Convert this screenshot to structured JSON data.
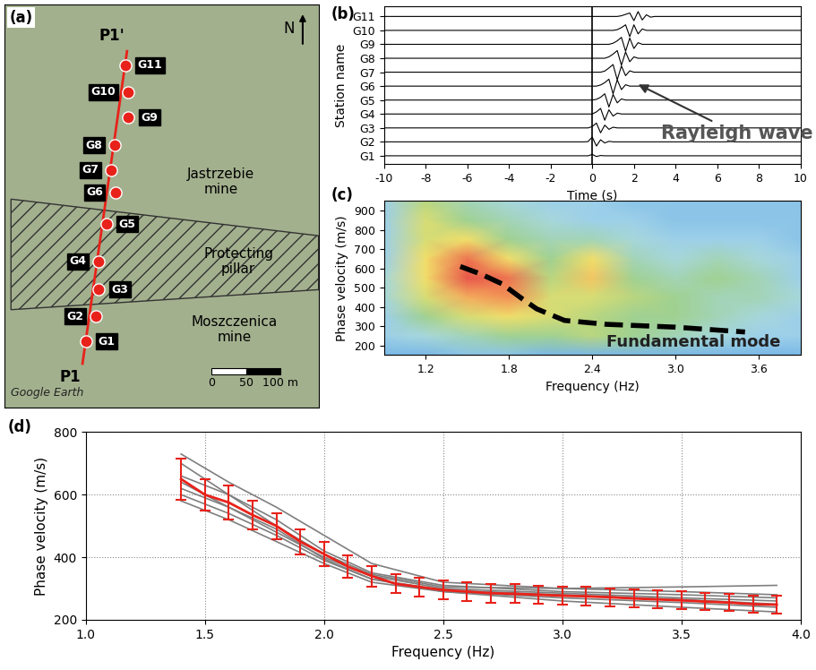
{
  "chart_data": [
    {
      "type": "map",
      "panel_label": "(a)",
      "tick_labels": false,
      "xlim": [
        0,
        455
      ],
      "ylim": [
        0,
        582
      ],
      "stations": [
        {
          "name": "G1",
          "x": 118,
          "y": 95
        },
        {
          "name": "G2",
          "x": 133,
          "y": 131
        },
        {
          "name": "G3",
          "x": 137,
          "y": 170
        },
        {
          "name": "G4",
          "x": 137,
          "y": 211
        },
        {
          "name": "G5",
          "x": 148,
          "y": 265
        },
        {
          "name": "G6",
          "x": 161,
          "y": 311
        },
        {
          "name": "G7",
          "x": 155,
          "y": 343
        },
        {
          "name": "G8",
          "x": 160,
          "y": 379
        },
        {
          "name": "G9",
          "x": 180,
          "y": 419
        },
        {
          "name": "G10",
          "x": 180,
          "y": 456
        },
        {
          "name": "G11",
          "x": 175,
          "y": 495
        }
      ],
      "station_color": "#e8221a",
      "line_color": "#e8221a",
      "profile_start": "P1",
      "profile_end": "P1'",
      "labels": {
        "north": "N",
        "mine_north": "Jastrzebie\nmine",
        "pillar": "Protecting\npillar",
        "mine_south": "Moszczenica\nmine",
        "credit": "Google Earth"
      },
      "scale_bar": [
        {
          "value": 0,
          "label": "0"
        },
        {
          "value": 50,
          "label": "50"
        },
        {
          "value": 100,
          "label": "100 m"
        }
      ]
    },
    {
      "type": "line",
      "panel_label": "(b)",
      "x_label": "Time (s)",
      "y_label": "Station name",
      "xlim": [
        -10,
        10
      ],
      "xticks": [
        -10,
        -8,
        -6,
        -4,
        -2,
        0,
        2,
        4,
        6,
        8,
        10
      ],
      "annotation": "Rayleigh wave",
      "color": "#000000",
      "x": [
        -10,
        -0.4,
        -0.2,
        0,
        0.2,
        0.4,
        0.6,
        0.8,
        1.0,
        1.2,
        1.4,
        1.6,
        1.8,
        2.0,
        2.2,
        2.4,
        2.6,
        2.8,
        3.0,
        3.2,
        3.4,
        3.6,
        10
      ],
      "series": [
        {
          "name": "G1",
          "values": [
            0,
            0,
            0,
            0.1,
            -0.05,
            0.02,
            0,
            0,
            0,
            0,
            0,
            0,
            0,
            0,
            0,
            0,
            0,
            0,
            0,
            0,
            0,
            0,
            0
          ]
        },
        {
          "name": "G2",
          "values": [
            0,
            0,
            0.02,
            0.35,
            -0.3,
            0.15,
            -0.08,
            0.04,
            0,
            0,
            0,
            0,
            0,
            0,
            0,
            0,
            0,
            0,
            0,
            0,
            0,
            0,
            0
          ]
        },
        {
          "name": "G3",
          "values": [
            0,
            0,
            0,
            0.1,
            0.35,
            -0.35,
            0.2,
            -0.1,
            0.05,
            0,
            0,
            0,
            0,
            0,
            0,
            0,
            0,
            0,
            0,
            0,
            0,
            0,
            0
          ]
        },
        {
          "name": "G4",
          "values": [
            0,
            0,
            0,
            0,
            0.15,
            0.4,
            -0.45,
            0.3,
            -0.15,
            0.06,
            0,
            0,
            0,
            0,
            0,
            0,
            0,
            0,
            0,
            0,
            0,
            0,
            0
          ]
        },
        {
          "name": "G5",
          "values": [
            0,
            0,
            0,
            0,
            0.05,
            0.2,
            0.45,
            -0.5,
            0.4,
            -0.2,
            0.08,
            0,
            0,
            0,
            0,
            0,
            0,
            0,
            0,
            0,
            0,
            0,
            0
          ]
        },
        {
          "name": "G6",
          "values": [
            0,
            0,
            0,
            0,
            0,
            0.08,
            0.25,
            0.5,
            -0.55,
            0.45,
            -0.25,
            0.1,
            0,
            0,
            0,
            0,
            0,
            0,
            0,
            0,
            0,
            0,
            0
          ]
        },
        {
          "name": "G7",
          "values": [
            0,
            0,
            0,
            0,
            0,
            0,
            0.08,
            0.3,
            0.55,
            -0.55,
            0.45,
            -0.25,
            0.1,
            0,
            0,
            0,
            0,
            0,
            0,
            0,
            0,
            0,
            0
          ]
        },
        {
          "name": "G8",
          "values": [
            0,
            0,
            0,
            0,
            0,
            0,
            0,
            0.1,
            0.3,
            0.55,
            -0.5,
            0.45,
            -0.25,
            0.1,
            0,
            0,
            0,
            0,
            0,
            0,
            0,
            0,
            0
          ]
        },
        {
          "name": "G9",
          "values": [
            0,
            0,
            0,
            0,
            0,
            0,
            0,
            0,
            0.08,
            0.25,
            0.5,
            -0.5,
            0.45,
            -0.3,
            0.12,
            0,
            0,
            0,
            0,
            0,
            0,
            0,
            0
          ]
        },
        {
          "name": "G10",
          "values": [
            0,
            0,
            0,
            0,
            0,
            0,
            0,
            0,
            0,
            0.05,
            0.2,
            0.4,
            -0.45,
            0.4,
            -0.25,
            0.1,
            0,
            0,
            0,
            0,
            0,
            0,
            0
          ]
        },
        {
          "name": "G11",
          "values": [
            0,
            0,
            0,
            0,
            0,
            0,
            0,
            0,
            0,
            0,
            0.05,
            0.15,
            0.25,
            -0.3,
            0.35,
            -0.25,
            0.12,
            -0.05,
            0,
            0,
            0,
            0,
            0
          ]
        }
      ]
    },
    {
      "type": "heatmap",
      "panel_label": "(c)",
      "x_label": "Frequency (Hz)",
      "y_label": "Phase velocity (m/s)",
      "xlim": [
        0.9,
        3.9
      ],
      "xticks": [
        1.2,
        1.8,
        2.4,
        3.0,
        3.6
      ],
      "ylim": [
        150,
        950
      ],
      "yticks": [
        200,
        300,
        400,
        500,
        600,
        700,
        800,
        900
      ],
      "frequencies": [
        0.9,
        1.2,
        1.5,
        1.8,
        2.1,
        2.4,
        2.7,
        3.0,
        3.3,
        3.6,
        3.9
      ],
      "velocities": [
        150,
        250,
        350,
        450,
        550,
        650,
        750,
        850,
        950
      ],
      "cells": [
        [
          0.2,
          0.2,
          0.25,
          0.25,
          0.2,
          0.2,
          0.2,
          0.2,
          0.2,
          0.2,
          0.2
        ],
        [
          0.3,
          0.35,
          0.4,
          0.45,
          0.45,
          0.5,
          0.45,
          0.4,
          0.35,
          0.3,
          0.3
        ],
        [
          0.3,
          0.45,
          0.55,
          0.6,
          0.55,
          0.5,
          0.45,
          0.45,
          0.4,
          0.35,
          0.3
        ],
        [
          0.35,
          0.55,
          0.7,
          0.75,
          0.55,
          0.55,
          0.5,
          0.45,
          0.4,
          0.4,
          0.35
        ],
        [
          0.35,
          0.6,
          0.85,
          0.8,
          0.5,
          0.65,
          0.45,
          0.4,
          0.45,
          0.4,
          0.3
        ],
        [
          0.3,
          0.6,
          0.8,
          0.6,
          0.45,
          0.6,
          0.4,
          0.35,
          0.4,
          0.35,
          0.3
        ],
        [
          0.3,
          0.55,
          0.6,
          0.45,
          0.4,
          0.4,
          0.35,
          0.3,
          0.3,
          0.3,
          0.25
        ],
        [
          0.3,
          0.55,
          0.45,
          0.4,
          0.35,
          0.3,
          0.3,
          0.25,
          0.25,
          0.25,
          0.25
        ],
        [
          0.3,
          0.5,
          0.4,
          0.35,
          0.3,
          0.3,
          0.25,
          0.25,
          0.25,
          0.25,
          0.25
        ]
      ],
      "mode": {
        "name": "Fundamental mode",
        "color": "#000000",
        "line_style": "dashed",
        "x": [
          1.45,
          1.6,
          1.75,
          1.9,
          2.0,
          2.2,
          2.5,
          3.0,
          3.5
        ],
        "values": [
          610,
          570,
          520,
          440,
          390,
          330,
          310,
          295,
          270
        ]
      }
    },
    {
      "type": "line",
      "panel_label": "(d)",
      "x_label": "Frequency (Hz)",
      "y_label": "Phase velocity (m/s)",
      "xlim": [
        1.0,
        4.0
      ],
      "xticks": [
        1.0,
        1.5,
        2.0,
        2.5,
        3.0,
        3.5,
        4.0
      ],
      "ylim": [
        200,
        800
      ],
      "yticks": [
        200,
        400,
        600,
        800
      ],
      "grid": true,
      "color": "#e8221a",
      "x": [
        1.4,
        1.5,
        1.6,
        1.7,
        1.8,
        1.9,
        2.0,
        2.1,
        2.2,
        2.3,
        2.4,
        2.5,
        2.6,
        2.7,
        2.8,
        2.9,
        3.0,
        3.1,
        3.2,
        3.3,
        3.4,
        3.5,
        3.6,
        3.7,
        3.8,
        3.9
      ],
      "values": [
        650,
        600,
        575,
        535,
        500,
        450,
        410,
        370,
        340,
        315,
        305,
        295,
        290,
        285,
        283,
        280,
        277,
        275,
        272,
        268,
        265,
        262,
        258,
        255,
        250,
        248
      ],
      "errors": [
        65,
        50,
        55,
        45,
        42,
        40,
        38,
        35,
        33,
        30,
        30,
        30,
        30,
        30,
        30,
        30,
        30,
        30,
        29,
        29,
        29,
        28,
        28,
        28,
        28,
        28
      ],
      "series": [
        {
          "color": "#7f7f7f",
          "x": [
            1.4,
            1.6,
            1.8,
            2.0,
            2.2,
            2.5,
            3.0,
            3.5,
            3.9
          ],
          "values": [
            730,
            640,
            560,
            470,
            380,
            320,
            300,
            290,
            280
          ]
        },
        {
          "color": "#7f7f7f",
          "x": [
            1.4,
            1.6,
            1.8,
            2.0,
            2.2,
            2.5,
            3.0,
            3.5,
            3.9
          ],
          "values": [
            700,
            600,
            520,
            420,
            350,
            310,
            290,
            280,
            270
          ]
        },
        {
          "color": "#7f7f7f",
          "x": [
            1.4,
            1.6,
            1.8,
            2.0,
            2.2,
            2.5,
            3.0,
            3.5,
            3.9
          ],
          "values": [
            640,
            560,
            480,
            400,
            340,
            300,
            285,
            270,
            260
          ]
        },
        {
          "color": "#7f7f7f",
          "x": [
            1.4,
            1.6,
            1.8,
            2.0,
            2.2,
            2.5,
            3.0,
            3.5,
            3.9
          ],
          "values": [
            600,
            540,
            470,
            390,
            330,
            295,
            280,
            265,
            250
          ]
        },
        {
          "color": "#7f7f7f",
          "x": [
            1.4,
            1.6,
            1.8,
            2.0,
            2.2,
            2.5,
            3.0,
            3.5,
            3.9
          ],
          "values": [
            580,
            520,
            450,
            380,
            320,
            290,
            270,
            255,
            240
          ]
        },
        {
          "color": "#7f7f7f",
          "x": [
            1.4,
            1.6,
            1.8,
            2.0,
            2.2,
            2.5,
            3.0,
            3.5,
            3.9
          ],
          "values": [
            660,
            600,
            500,
            410,
            345,
            305,
            300,
            305,
            310
          ]
        },
        {
          "color": "#7f7f7f",
          "x": [
            1.4,
            1.6,
            1.8,
            2.0,
            2.2,
            2.5,
            3.0,
            3.5,
            3.9
          ],
          "values": [
            620,
            560,
            490,
            395,
            330,
            290,
            260,
            240,
            225
          ]
        }
      ]
    }
  ]
}
